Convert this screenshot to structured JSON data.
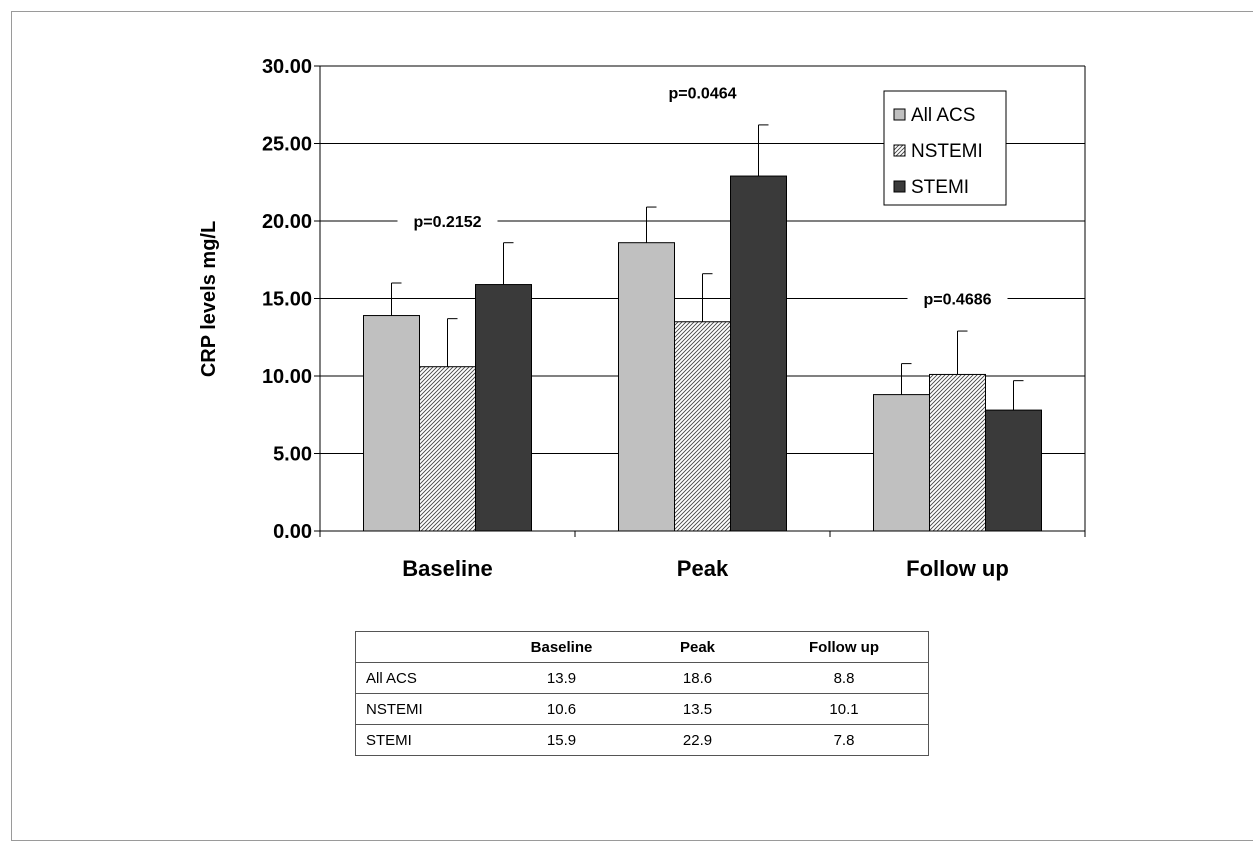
{
  "chart_data": {
    "type": "bar",
    "ylabel": "CRP levels mg/L",
    "xlabel": "",
    "ylim": [
      0,
      30
    ],
    "yticks": [
      "0.00",
      "5.00",
      "10.00",
      "15.00",
      "20.00",
      "25.00",
      "30.00"
    ],
    "grid": true,
    "legend_position": "top-right",
    "categories": [
      "Baseline",
      "Peak",
      "Follow up"
    ],
    "series": [
      {
        "name": "All ACS",
        "values": [
          13.9,
          18.6,
          8.8
        ],
        "error_upper": [
          16.0,
          20.9,
          10.8
        ],
        "color": "#c0c0c0",
        "pattern": "solid"
      },
      {
        "name": "NSTEMI",
        "values": [
          10.6,
          13.5,
          10.1
        ],
        "error_upper": [
          13.7,
          16.6,
          12.9
        ],
        "color": "#ffffff",
        "pattern": "hatched"
      },
      {
        "name": "STEMI",
        "values": [
          15.9,
          22.9,
          7.8
        ],
        "error_upper": [
          18.6,
          26.2,
          9.7
        ],
        "color": "#3a3a3a",
        "pattern": "solid"
      }
    ],
    "annotations": [
      {
        "text": "p=0.2152",
        "category": "Baseline",
        "y": 20.0
      },
      {
        "text": "p=0.0464",
        "category": "Peak",
        "y": 28.3
      },
      {
        "text": "p=0.4686",
        "category": "Follow up",
        "y": 15.0
      }
    ]
  },
  "table": {
    "headers": [
      "",
      "Baseline",
      "Peak",
      "Follow up"
    ],
    "rows": [
      {
        "label": "All ACS",
        "cells": [
          "13.9",
          "18.6",
          "8.8"
        ]
      },
      {
        "label": "NSTEMI",
        "cells": [
          "10.6",
          "13.5",
          "10.1"
        ]
      },
      {
        "label": "STEMI",
        "cells": [
          "15.9",
          "22.9",
          "7.8"
        ]
      }
    ]
  }
}
